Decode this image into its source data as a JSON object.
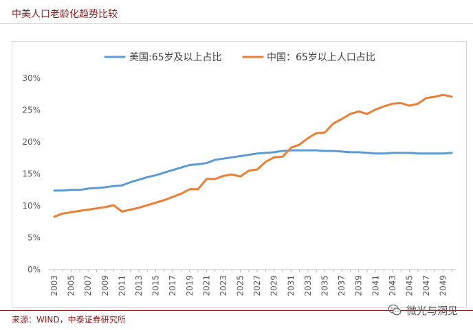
{
  "title": "中美人口老龄化趋势比较",
  "source": "来源：WIND，中泰证券研究所",
  "watermark": "微光与洞见",
  "watermark_icon": "wechat-icon",
  "chart_data": {
    "type": "line",
    "ylim": [
      0,
      30
    ],
    "y_ticks": [
      "0%",
      "5%",
      "10%",
      "15%",
      "20%",
      "25%",
      "30%"
    ],
    "x_range": [
      2003,
      2050
    ],
    "x_tick_labels": [
      "2003",
      "2005",
      "2007",
      "2009",
      "2011",
      "2013",
      "2015",
      "2017",
      "2019",
      "2021",
      "2023",
      "2025",
      "2027",
      "2029",
      "2031",
      "2033",
      "2035",
      "2037",
      "2039",
      "2041",
      "2043",
      "2045",
      "2047",
      "2049"
    ],
    "grid": false,
    "legend": "top",
    "series": [
      {
        "name": "美国:65岁及以上占比",
        "color": "#5b9bd5",
        "x": [
          2003,
          2004,
          2005,
          2006,
          2007,
          2008,
          2009,
          2010,
          2011,
          2012,
          2013,
          2014,
          2015,
          2016,
          2017,
          2018,
          2019,
          2020,
          2021,
          2022,
          2023,
          2024,
          2025,
          2026,
          2027,
          2028,
          2029,
          2030,
          2031,
          2032,
          2033,
          2034,
          2035,
          2036,
          2037,
          2038,
          2039,
          2040,
          2041,
          2042,
          2043,
          2044,
          2045,
          2046,
          2047,
          2048,
          2049,
          2050
        ],
        "values": [
          12.4,
          12.4,
          12.5,
          12.5,
          12.7,
          12.8,
          12.9,
          13.1,
          13.2,
          13.7,
          14.1,
          14.5,
          14.8,
          15.2,
          15.6,
          16.0,
          16.4,
          16.5,
          16.7,
          17.2,
          17.4,
          17.6,
          17.8,
          18.0,
          18.2,
          18.3,
          18.4,
          18.6,
          18.7,
          18.7,
          18.7,
          18.7,
          18.6,
          18.6,
          18.5,
          18.4,
          18.4,
          18.3,
          18.2,
          18.2,
          18.3,
          18.3,
          18.3,
          18.2,
          18.2,
          18.2,
          18.2,
          18.3
        ]
      },
      {
        "name": "中国：65岁以上人口占比",
        "color": "#ed7d31",
        "x": [
          2003,
          2004,
          2005,
          2006,
          2007,
          2008,
          2009,
          2010,
          2011,
          2012,
          2013,
          2014,
          2015,
          2016,
          2017,
          2018,
          2019,
          2020,
          2021,
          2022,
          2023,
          2024,
          2025,
          2026,
          2027,
          2028,
          2029,
          2030,
          2031,
          2032,
          2033,
          2034,
          2035,
          2036,
          2037,
          2038,
          2039,
          2040,
          2041,
          2042,
          2043,
          2044,
          2045,
          2046,
          2047,
          2048,
          2049,
          2050
        ],
        "values": [
          8.3,
          8.8,
          9.0,
          9.2,
          9.4,
          9.6,
          9.8,
          10.1,
          9.1,
          9.4,
          9.7,
          10.1,
          10.5,
          10.9,
          11.4,
          11.9,
          12.6,
          12.6,
          14.2,
          14.2,
          14.7,
          14.9,
          14.6,
          15.5,
          15.7,
          16.9,
          17.6,
          17.7,
          19.1,
          19.6,
          20.6,
          21.4,
          21.5,
          22.9,
          23.6,
          24.4,
          24.8,
          24.4,
          25.1,
          25.6,
          26.0,
          26.1,
          25.7,
          26.0,
          26.9,
          27.1,
          27.4,
          27.1
        ]
      }
    ]
  }
}
